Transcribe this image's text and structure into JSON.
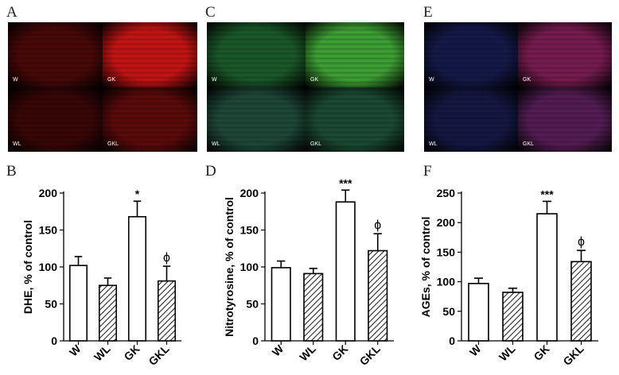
{
  "panels": {
    "A": "A",
    "B": "B",
    "C": "C",
    "D": "D",
    "E": "E",
    "F": "F"
  },
  "images": [
    {
      "panel": "A",
      "stain": "red",
      "quadrants": [
        {
          "label": "W",
          "color": "#4a0808"
        },
        {
          "label": "GK",
          "color": "#c81414"
        },
        {
          "label": "WL",
          "color": "#3a0606"
        },
        {
          "label": "GKL",
          "color": "#5e0a0a"
        }
      ]
    },
    {
      "panel": "C",
      "stain": "green-blue",
      "quadrants": [
        {
          "label": "W",
          "color": "#1b5a2a"
        },
        {
          "label": "GK",
          "color": "#3fa436"
        },
        {
          "label": "WL",
          "color": "#1f4a3a"
        },
        {
          "label": "GKL",
          "color": "#1c4c34"
        }
      ]
    },
    {
      "panel": "E",
      "stain": "blue-red",
      "quadrants": [
        {
          "label": "W",
          "color": "#141a4a"
        },
        {
          "label": "GK",
          "color": "#7a1c52"
        },
        {
          "label": "WL",
          "color": "#141844"
        },
        {
          "label": "GKL",
          "color": "#561e56"
        }
      ]
    }
  ],
  "chart_data": [
    {
      "panel": "B",
      "type": "bar",
      "categories": [
        "W",
        "WL",
        "GK",
        "GKL"
      ],
      "values": [
        102,
        75,
        168,
        81
      ],
      "errors": [
        12,
        10,
        21,
        20
      ],
      "fills": [
        "open",
        "hatched",
        "open",
        "hatched"
      ],
      "annotations": [
        "",
        "",
        "*",
        "ϕ"
      ],
      "ylabel": "DHE, % of control",
      "ylim": [
        0,
        200
      ],
      "yticks": [
        0,
        50,
        100,
        150,
        200
      ]
    },
    {
      "panel": "D",
      "type": "bar",
      "categories": [
        "W",
        "WL",
        "GK",
        "GKL"
      ],
      "values": [
        99,
        91,
        188,
        122
      ],
      "errors": [
        9,
        7,
        16,
        23
      ],
      "fills": [
        "open",
        "hatched",
        "open",
        "hatched"
      ],
      "annotations": [
        "",
        "",
        "***",
        "ϕ"
      ],
      "ylabel": "Nitrotyrosine, % of control",
      "ylim": [
        0,
        200
      ],
      "yticks": [
        0,
        50,
        100,
        150,
        200
      ]
    },
    {
      "panel": "F",
      "type": "bar",
      "categories": [
        "W",
        "WL",
        "GK",
        "GKL"
      ],
      "values": [
        97,
        82,
        215,
        134
      ],
      "errors": [
        9,
        7,
        21,
        19
      ],
      "fills": [
        "open",
        "hatched",
        "open",
        "hatched"
      ],
      "annotations": [
        "",
        "",
        "***",
        "ϕ"
      ],
      "ylabel": "AGEs, % of control",
      "ylim": [
        0,
        250
      ],
      "yticks": [
        0,
        50,
        100,
        150,
        200,
        250
      ]
    }
  ]
}
